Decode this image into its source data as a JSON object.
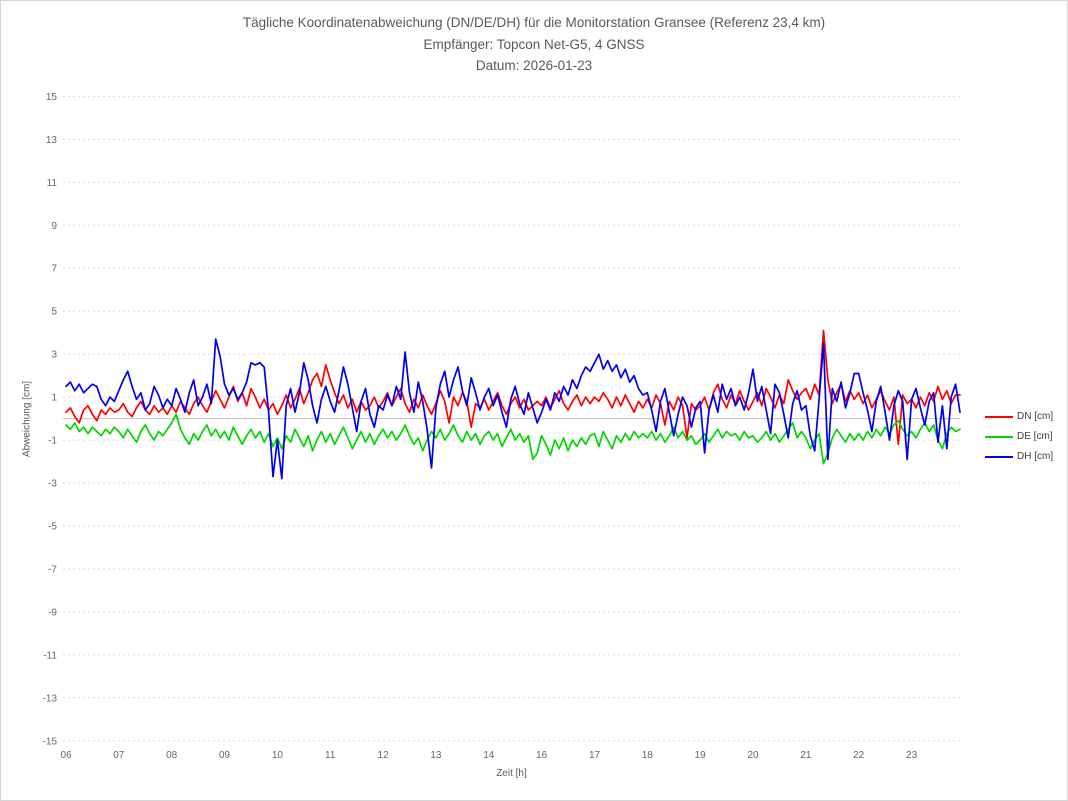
{
  "chart_data": {
    "type": "line",
    "title": "Tägliche Koordinatenabweichung (DN/DE/DH) für die Monitorstation Gransee (Referenz 23,4 km)",
    "subtitle": "Empfänger: Topcon Net-G5, 4 GNSS",
    "date_label": "Datum: 2026-01-23",
    "xlabel": "Zeit [h]",
    "ylabel": "Abweichung [cm]",
    "ylim": [
      -15,
      15
    ],
    "y_ticks": [
      15,
      13,
      11,
      9,
      7,
      5,
      3,
      1,
      -1,
      -3,
      -5,
      -7,
      -9,
      -11,
      -13,
      -15
    ],
    "x_tick_labels": [
      "06",
      "07",
      "08",
      "09",
      "10",
      "11",
      "12",
      "13",
      "14",
      "16",
      "17",
      "18",
      "19",
      "20",
      "21",
      "22",
      "23"
    ],
    "samples_per_hour": 12,
    "grid": "dotted-horizontal",
    "zero_line": true,
    "legend_position": "right-middle",
    "colors": {
      "dn": "#ff0000",
      "de": "#00d500",
      "dh": "#0000ee"
    },
    "series": [
      {
        "name": "DN [cm]",
        "color": "#ff0000",
        "values": [
          0.3,
          0.5,
          0.1,
          -0.2,
          0.4,
          0.6,
          0.2,
          -0.1,
          0.4,
          0.2,
          0.5,
          0.3,
          0.4,
          0.7,
          0.3,
          0.1,
          0.5,
          0.8,
          0.4,
          0.2,
          0.6,
          0.3,
          0.5,
          0.2,
          0.6,
          0.3,
          0.8,
          0.5,
          0.2,
          0.7,
          1.0,
          0.6,
          0.3,
          0.8,
          1.3,
          0.9,
          0.5,
          1.0,
          1.5,
          0.8,
          1.2,
          0.6,
          1.4,
          1.0,
          0.5,
          0.9,
          0.4,
          0.7,
          0.2,
          0.6,
          1.1,
          0.5,
          0.9,
          1.4,
          0.7,
          1.2,
          1.8,
          2.1,
          1.5,
          2.5,
          1.8,
          1.2,
          0.7,
          1.1,
          0.5,
          0.9,
          0.3,
          0.8,
          0.4,
          0.6,
          1.0,
          0.5,
          0.8,
          1.2,
          0.6,
          1.0,
          1.4,
          0.7,
          0.3,
          0.9,
          0.5,
          1.1,
          0.6,
          0.2,
          0.7,
          1.3,
          0.8,
          -0.2,
          1.0,
          0.6,
          1.2,
          0.8,
          -0.4,
          0.7,
          0.5,
          0.9,
          0.4,
          0.8,
          1.2,
          0.6,
          0.2,
          0.7,
          1.0,
          0.5,
          0.9,
          0.4,
          0.6,
          0.8,
          0.6,
          1.0,
          0.5,
          0.9,
          1.3,
          0.7,
          0.4,
          0.8,
          1.1,
          0.6,
          1.0,
          0.7,
          1.0,
          0.8,
          1.2,
          0.9,
          0.5,
          1.0,
          0.6,
          1.1,
          0.7,
          0.3,
          0.8,
          0.5,
          0.9,
          0.5,
          1.1,
          0.7,
          -0.3,
          0.8,
          0.4,
          1.0,
          0.6,
          -0.9,
          0.7,
          0.4,
          0.6,
          1.0,
          0.4,
          1.2,
          1.6,
          0.9,
          0.5,
          1.1,
          0.7,
          1.3,
          0.8,
          0.4,
          0.8,
          1.2,
          0.6,
          1.4,
          1.0,
          0.5,
          1.1,
          0.7,
          1.8,
          1.3,
          0.9,
          1.2,
          1.4,
          0.9,
          1.6,
          1.1,
          4.1,
          1.8,
          0.7,
          1.2,
          1.6,
          0.8,
          1.3,
          0.9,
          1.2,
          0.7,
          1.1,
          0.5,
          0.9,
          1.3,
          0.8,
          0.4,
          1.0,
          -1.2,
          1.1,
          0.7,
          0.9,
          0.5,
          1.0,
          0.6,
          1.2,
          0.8,
          1.5,
          0.9,
          1.3,
          0.7,
          1.1,
          1.1
        ]
      },
      {
        "name": "DE [cm]",
        "color": "#00d500",
        "values": [
          -0.3,
          -0.5,
          -0.2,
          -0.6,
          -0.4,
          -0.7,
          -0.4,
          -0.6,
          -0.8,
          -0.5,
          -0.7,
          -0.4,
          -0.6,
          -0.9,
          -0.5,
          -0.8,
          -1.1,
          -0.6,
          -0.3,
          -0.7,
          -1.0,
          -0.6,
          -0.8,
          -0.5,
          -0.2,
          0.2,
          -0.5,
          -0.9,
          -1.2,
          -0.7,
          -1.0,
          -0.6,
          -0.3,
          -0.8,
          -0.5,
          -0.9,
          -0.6,
          -1.0,
          -0.4,
          -0.8,
          -1.2,
          -0.8,
          -0.5,
          -0.9,
          -0.6,
          -1.1,
          -0.7,
          -1.3,
          -0.9,
          -1.4,
          -0.8,
          -1.1,
          -0.5,
          -0.9,
          -1.3,
          -0.8,
          -1.5,
          -1.0,
          -0.6,
          -1.1,
          -0.7,
          -1.2,
          -0.8,
          -0.4,
          -0.9,
          -1.4,
          -1.0,
          -0.6,
          -1.1,
          -0.7,
          -1.2,
          -0.8,
          -0.5,
          -0.9,
          -0.6,
          -1.0,
          -0.7,
          -0.3,
          -0.8,
          -1.2,
          -0.9,
          -1.5,
          -1.0,
          -0.6,
          -0.9,
          -0.5,
          -1.0,
          -0.7,
          -0.3,
          -0.8,
          -1.1,
          -0.6,
          -1.0,
          -0.7,
          -1.2,
          -0.8,
          -0.6,
          -1.0,
          -0.7,
          -1.3,
          -0.9,
          -0.5,
          -1.0,
          -0.7,
          -1.1,
          -0.8,
          -1.9,
          -1.6,
          -0.8,
          -1.2,
          -1.7,
          -1.0,
          -1.4,
          -0.9,
          -1.5,
          -1.0,
          -1.3,
          -0.9,
          -1.2,
          -0.8,
          -0.7,
          -1.3,
          -0.6,
          -1.0,
          -1.4,
          -0.8,
          -1.1,
          -0.7,
          -1.0,
          -0.6,
          -0.9,
          -0.7,
          -0.9,
          -0.6,
          -1.0,
          -0.7,
          -1.1,
          -0.8,
          -0.4,
          -0.9,
          -0.6,
          -1.0,
          -0.8,
          -1.2,
          -1.0,
          -0.7,
          -1.1,
          -0.8,
          -0.5,
          -0.9,
          -0.6,
          -0.8,
          -0.7,
          -1.0,
          -0.6,
          -0.9,
          -0.8,
          -1.1,
          -0.9,
          -0.6,
          -1.0,
          -0.7,
          -1.1,
          -0.8,
          -0.5,
          -0.2,
          -0.9,
          -0.6,
          -0.9,
          -1.4,
          -1.0,
          -0.7,
          -2.1,
          -1.6,
          -0.9,
          -0.5,
          -0.8,
          -1.1,
          -0.7,
          -1.0,
          -0.7,
          -1.0,
          -0.6,
          -0.9,
          -0.5,
          -0.8,
          -0.4,
          -0.7,
          -0.3,
          -0.1,
          -0.5,
          -0.8,
          -0.6,
          -0.9,
          -0.5,
          -0.2,
          -0.6,
          -0.3,
          -1.0,
          -1.4,
          -0.7,
          -0.4,
          -0.6,
          -0.5
        ]
      },
      {
        "name": "DH [cm]",
        "color": "#0000ee",
        "values": [
          1.5,
          1.7,
          1.3,
          1.6,
          1.2,
          1.4,
          1.6,
          1.5,
          0.9,
          0.6,
          1.0,
          0.8,
          1.3,
          1.8,
          2.2,
          1.5,
          0.9,
          1.2,
          0.4,
          0.7,
          1.5,
          1.1,
          0.5,
          0.9,
          0.6,
          1.4,
          0.9,
          0.3,
          1.2,
          1.8,
          0.6,
          1.0,
          1.6,
          0.7,
          3.7,
          2.9,
          1.6,
          1.1,
          1.4,
          0.9,
          1.2,
          1.7,
          2.6,
          2.5,
          2.6,
          2.4,
          0.3,
          -2.7,
          -1.0,
          -2.8,
          0.6,
          1.4,
          0.3,
          1.2,
          2.6,
          1.8,
          0.6,
          -0.2,
          0.9,
          1.5,
          0.8,
          0.3,
          1.3,
          2.4,
          1.6,
          0.5,
          -0.6,
          0.8,
          1.4,
          0.2,
          -0.4,
          0.6,
          0.4,
          1.1,
          0.6,
          1.5,
          0.9,
          3.1,
          1.2,
          0.3,
          1.7,
          0.8,
          -0.5,
          -2.3,
          0.5,
          1.6,
          2.2,
          1.0,
          1.8,
          2.4,
          1.3,
          0.6,
          1.9,
          1.2,
          0.4,
          1.0,
          1.4,
          0.6,
          1.1,
          0.3,
          -0.4,
          0.9,
          1.5,
          0.7,
          0.2,
          1.2,
          0.5,
          -0.2,
          0.3,
          0.9,
          0.4,
          1.2,
          0.8,
          1.5,
          1.1,
          1.8,
          1.4,
          2.0,
          2.4,
          2.2,
          2.6,
          3.0,
          2.3,
          2.7,
          2.2,
          2.5,
          1.9,
          2.3,
          1.7,
          2.0,
          1.4,
          1.1,
          1.2,
          0.4,
          -0.6,
          0.8,
          1.4,
          0.3,
          -0.8,
          0.2,
          1.0,
          0.6,
          -0.4,
          0.5,
          0.8,
          -1.6,
          0.4,
          1.1,
          0.3,
          1.6,
          0.9,
          1.4,
          0.6,
          1.0,
          0.4,
          1.2,
          2.3,
          0.8,
          1.5,
          0.4,
          -0.7,
          1.6,
          1.2,
          0.2,
          -0.9,
          0.7,
          1.3,
          0.4,
          0.6,
          -0.8,
          -1.5,
          0.9,
          3.5,
          -1.9,
          1.4,
          0.8,
          1.7,
          0.5,
          1.2,
          2.1,
          2.1,
          1.2,
          0.4,
          -0.6,
          0.8,
          1.5,
          0.3,
          -1.0,
          0.6,
          1.3,
          0.8,
          -1.9,
          0.9,
          1.4,
          0.5,
          -0.3,
          0.8,
          1.2,
          -1.1,
          0.6,
          -1.4,
          1.0,
          1.6,
          0.3
        ]
      }
    ]
  }
}
